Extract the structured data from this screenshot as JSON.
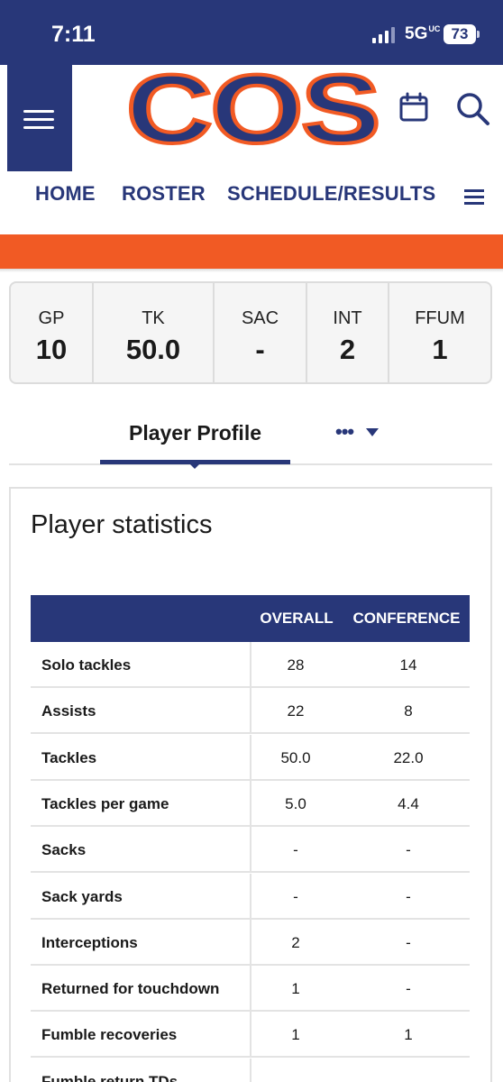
{
  "status_bar": {
    "time": "7:11",
    "network": "5G",
    "network_sup": "UC",
    "battery": "73"
  },
  "header": {
    "logo_text": "COS"
  },
  "nav": {
    "items": [
      "HOME",
      "ROSTER",
      "SCHEDULE/RESULTS"
    ]
  },
  "stats_summary": [
    {
      "label": "GP",
      "value": "10"
    },
    {
      "label": "TK",
      "value": "50.0"
    },
    {
      "label": "SAC",
      "value": "-"
    },
    {
      "label": "INT",
      "value": "2"
    },
    {
      "label": "FFUM",
      "value": "1"
    }
  ],
  "tabs": {
    "active": "Player Profile",
    "more": "•••"
  },
  "player_stats": {
    "title": "Player statistics",
    "columns": [
      "",
      "OVERALL",
      "CONFERENCE"
    ],
    "rows": [
      {
        "name": "Solo tackles",
        "overall": "28",
        "conference": "14"
      },
      {
        "name": "Assists",
        "overall": "22",
        "conference": "8"
      },
      {
        "name": "Tackles",
        "overall": "50.0",
        "conference": "22.0"
      },
      {
        "name": "Tackles per game",
        "overall": "5.0",
        "conference": "4.4"
      },
      {
        "name": "Sacks",
        "overall": "-",
        "conference": "-"
      },
      {
        "name": "Sack yards",
        "overall": "-",
        "conference": "-"
      },
      {
        "name": "Interceptions",
        "overall": "2",
        "conference": "-"
      },
      {
        "name": "Returned for touchdown",
        "overall": "1",
        "conference": "-"
      },
      {
        "name": "Fumble recoveries",
        "overall": "1",
        "conference": "1"
      },
      {
        "name": "Fumble return TDs",
        "overall": "",
        "conference": ""
      }
    ]
  },
  "colors": {
    "navy": "#283779",
    "orange": "#f15a24"
  }
}
